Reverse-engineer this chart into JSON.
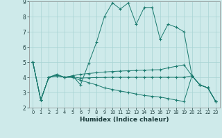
{
  "xlabel": "Humidex (Indice chaleur)",
  "background_color": "#ceeaea",
  "line_color": "#1a7a6e",
  "grid_color": "#a8d4d4",
  "xlim": [
    -0.5,
    23.5
  ],
  "ylim": [
    2,
    9
  ],
  "yticks": [
    2,
    3,
    4,
    5,
    6,
    7,
    8,
    9
  ],
  "xticks": [
    0,
    1,
    2,
    3,
    4,
    5,
    6,
    7,
    8,
    9,
    10,
    11,
    12,
    13,
    14,
    15,
    16,
    17,
    18,
    19,
    20,
    21,
    22,
    23
  ],
  "series": [
    [
      5.0,
      2.5,
      4.0,
      4.2,
      4.0,
      4.1,
      3.5,
      4.9,
      6.3,
      8.0,
      8.9,
      8.5,
      8.9,
      7.5,
      8.6,
      8.6,
      6.5,
      7.5,
      7.3,
      7.0,
      4.1,
      3.5,
      3.3,
      2.4
    ],
    [
      5.0,
      2.5,
      4.0,
      4.15,
      4.0,
      4.1,
      4.2,
      4.25,
      4.3,
      4.35,
      4.38,
      4.41,
      4.43,
      4.45,
      4.47,
      4.49,
      4.5,
      4.62,
      4.72,
      4.82,
      4.1,
      3.5,
      3.3,
      2.4
    ],
    [
      5.0,
      2.5,
      4.0,
      4.1,
      4.0,
      4.02,
      3.95,
      3.97,
      3.98,
      3.99,
      4.0,
      4.0,
      4.0,
      4.0,
      4.0,
      4.0,
      4.0,
      4.0,
      4.0,
      4.0,
      4.1,
      3.5,
      3.3,
      2.4
    ],
    [
      5.0,
      2.5,
      4.0,
      4.1,
      4.0,
      4.0,
      3.8,
      3.65,
      3.5,
      3.3,
      3.2,
      3.1,
      3.0,
      2.9,
      2.8,
      2.75,
      2.7,
      2.6,
      2.5,
      2.4,
      4.1,
      3.5,
      3.3,
      2.4
    ]
  ]
}
